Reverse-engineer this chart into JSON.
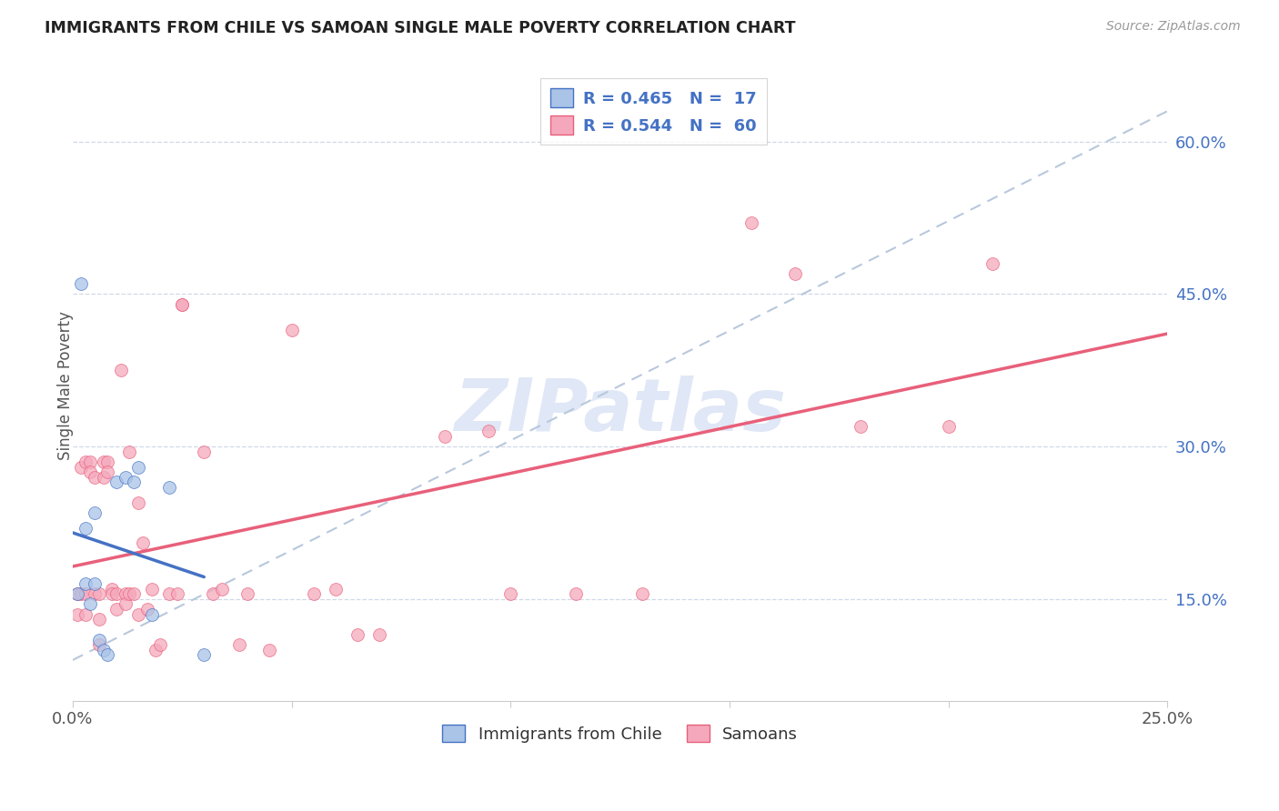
{
  "title": "IMMIGRANTS FROM CHILE VS SAMOAN SINGLE MALE POVERTY CORRELATION CHART",
  "source": "Source: ZipAtlas.com",
  "ylabel": "Single Male Poverty",
  "ytick_labels": [
    "15.0%",
    "30.0%",
    "45.0%",
    "60.0%"
  ],
  "ytick_values": [
    0.15,
    0.3,
    0.45,
    0.6
  ],
  "xmin": 0.0,
  "xmax": 0.25,
  "ymin": 0.05,
  "ymax": 0.67,
  "legend_label1": "Immigrants from Chile",
  "legend_label2": "Samoans",
  "color_chile": "#aac4e8",
  "color_samoan": "#f5a8bc",
  "color_chile_line": "#4472c4",
  "color_samoan_line": "#e8607a",
  "color_dashed": "#b8c8dc",
  "background_color": "#ffffff",
  "grid_color": "#d0d8e8",
  "watermark_text": "ZIPatlas",
  "watermark_color": "#ccd8f0",
  "chile_x": [
    0.001,
    0.002,
    0.003,
    0.003,
    0.004,
    0.005,
    0.005,
    0.006,
    0.007,
    0.008,
    0.01,
    0.012,
    0.014,
    0.015,
    0.018,
    0.022,
    0.03
  ],
  "chile_y": [
    0.155,
    0.46,
    0.22,
    0.165,
    0.145,
    0.235,
    0.165,
    0.11,
    0.1,
    0.095,
    0.265,
    0.27,
    0.265,
    0.28,
    0.135,
    0.26,
    0.095
  ],
  "samoan_x": [
    0.001,
    0.001,
    0.002,
    0.002,
    0.003,
    0.003,
    0.003,
    0.004,
    0.004,
    0.005,
    0.005,
    0.006,
    0.006,
    0.006,
    0.007,
    0.007,
    0.008,
    0.008,
    0.009,
    0.009,
    0.01,
    0.01,
    0.011,
    0.012,
    0.012,
    0.013,
    0.013,
    0.014,
    0.015,
    0.015,
    0.016,
    0.017,
    0.018,
    0.019,
    0.02,
    0.022,
    0.024,
    0.025,
    0.025,
    0.03,
    0.032,
    0.034,
    0.038,
    0.04,
    0.045,
    0.05,
    0.055,
    0.06,
    0.065,
    0.07,
    0.085,
    0.095,
    0.1,
    0.115,
    0.13,
    0.155,
    0.165,
    0.18,
    0.2,
    0.21
  ],
  "samoan_y": [
    0.155,
    0.135,
    0.28,
    0.155,
    0.285,
    0.155,
    0.135,
    0.285,
    0.275,
    0.27,
    0.155,
    0.155,
    0.13,
    0.105,
    0.285,
    0.27,
    0.285,
    0.275,
    0.16,
    0.155,
    0.155,
    0.14,
    0.375,
    0.155,
    0.145,
    0.295,
    0.155,
    0.155,
    0.245,
    0.135,
    0.205,
    0.14,
    0.16,
    0.1,
    0.105,
    0.155,
    0.155,
    0.44,
    0.44,
    0.295,
    0.155,
    0.16,
    0.105,
    0.155,
    0.1,
    0.415,
    0.155,
    0.16,
    0.115,
    0.115,
    0.31,
    0.315,
    0.155,
    0.155,
    0.155,
    0.52,
    0.47,
    0.32,
    0.32,
    0.48
  ]
}
